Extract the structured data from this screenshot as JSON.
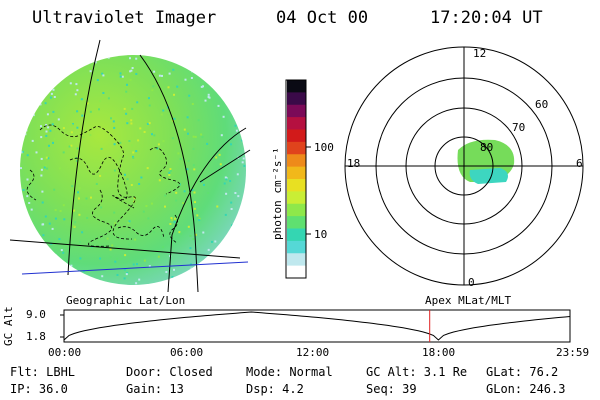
{
  "header": {
    "instrument": "Ultraviolet Imager",
    "date": "04 Oct 00",
    "time": "17:20:04 UT"
  },
  "geo_panel": {
    "caption": "Geographic Lat/Lon"
  },
  "colorbar": {
    "label": "photon cm⁻²s⁻¹",
    "ticks": [
      "100",
      "10"
    ],
    "colors": [
      "#ffffff",
      "#bfe8ee",
      "#55d8d6",
      "#34d6b2",
      "#5fe070",
      "#8ee84a",
      "#c9ee35",
      "#e8e022",
      "#f1b81a",
      "#ee8a1a",
      "#e0431c",
      "#d21a1a",
      "#b51040",
      "#7b0a58",
      "#3a0a48",
      "#0a0a14"
    ]
  },
  "polar_panel": {
    "caption": "Apex MLat/MLT",
    "mlt_labels": {
      "top": "12",
      "left": "18",
      "right": "6",
      "bottom": "0"
    },
    "mlat_labels": [
      "60",
      "70",
      "80"
    ]
  },
  "altitude_panel": {
    "ylabel": "GC Alt",
    "yticks": [
      "9.0",
      "1.8"
    ],
    "xticks": [
      "00:00",
      "06:00",
      "12:00",
      "18:00",
      "23:59"
    ],
    "marker_time": "17:20",
    "marker_color": "#e02020"
  },
  "info": {
    "filter": "Flt: LBHL",
    "door": "Door: Closed",
    "mode": "Mode: Normal",
    "gc_alt": "GC Alt: 3.1 Re",
    "glat": "GLat:  76.2",
    "ip": "IP: 36.0",
    "gain": "Gain: 13",
    "dsp": "Dsp:     4.2",
    "seq": "Seq: 39",
    "glon": "GLon: 246.3"
  }
}
